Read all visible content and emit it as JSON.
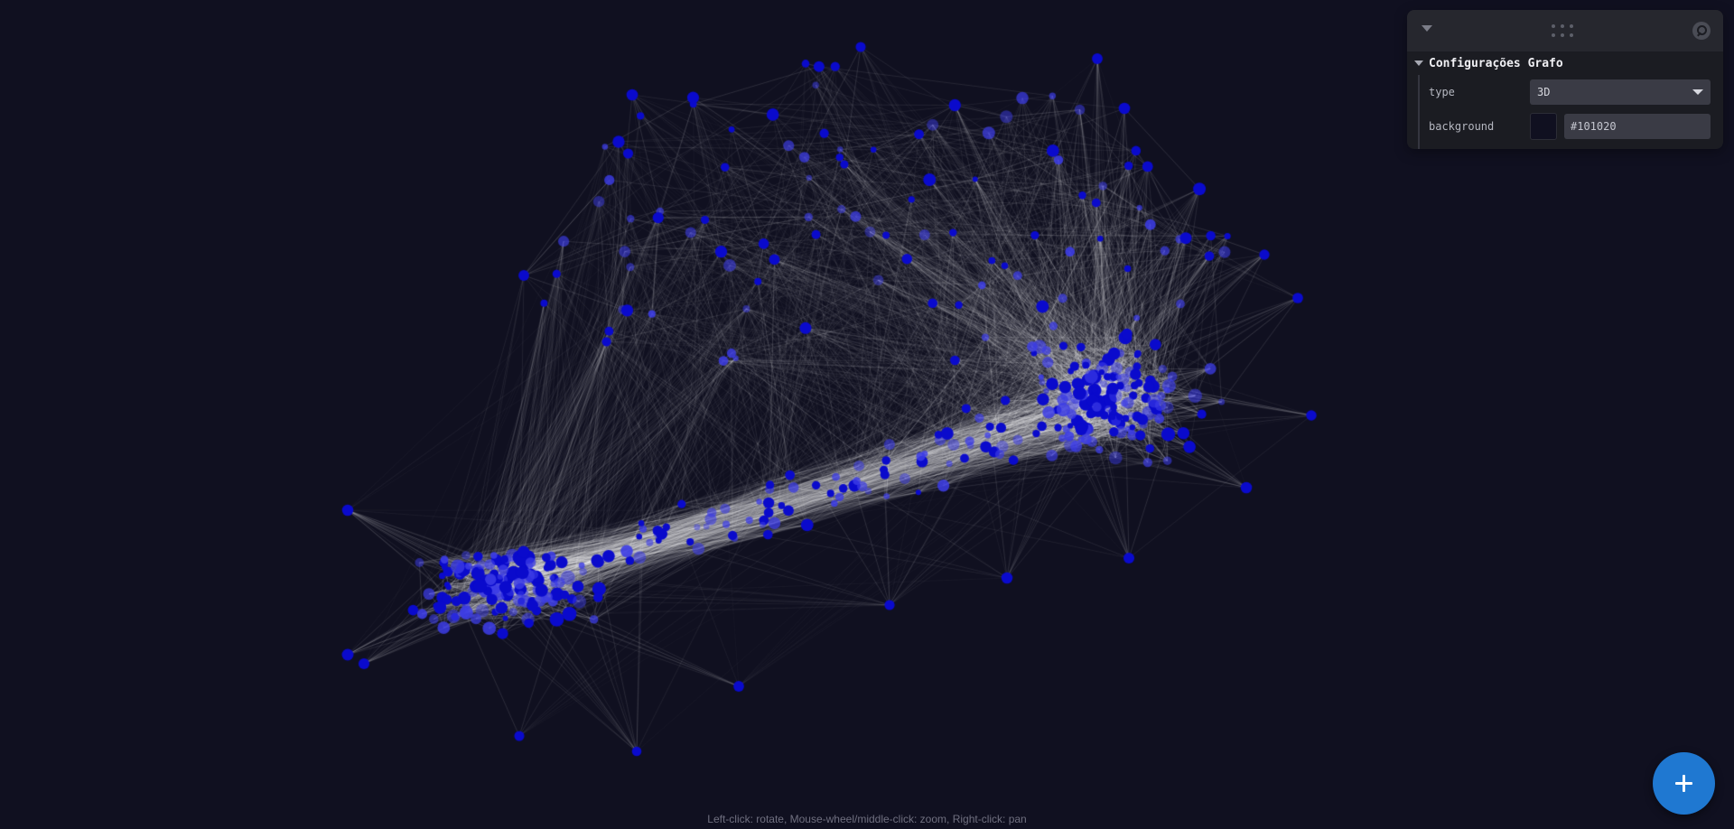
{
  "panel": {
    "folder_title": "Configurações Grafo",
    "type_label": "type",
    "type_value": "3D",
    "background_label": "background",
    "background_value": "#101020"
  },
  "graph": {
    "background_color": "#101020",
    "node_color": "#0a0acc",
    "link_color": "#ffffff"
  },
  "hint": "Left-click: rotate, Mouse-wheel/middle-click: zoom, Right-click: pan",
  "fab": {
    "icon": "plus-icon",
    "color": "#1f78d1"
  }
}
